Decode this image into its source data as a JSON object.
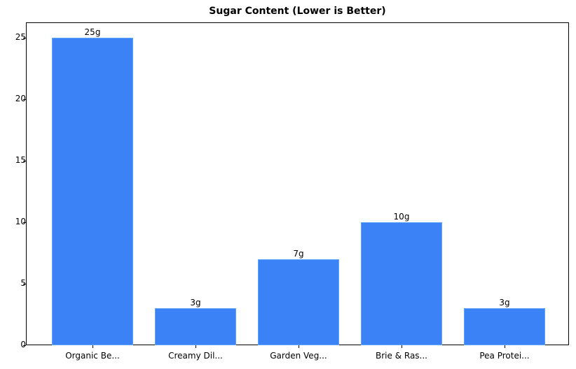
{
  "chart_data": {
    "type": "bar",
    "title": "Sugar Content (Lower is Better)",
    "xlabel": "",
    "ylabel": "",
    "categories": [
      "Organic Be...",
      "Creamy Dil...",
      "Garden Veg...",
      "Brie & Ras...",
      "Pea Protei..."
    ],
    "values": [
      25,
      3,
      7,
      10,
      3
    ],
    "value_labels": [
      "25g",
      "3g",
      "7g",
      "10g",
      "3g"
    ],
    "ylim": [
      0,
      26.25
    ],
    "yticks": [
      0,
      5,
      10,
      15,
      20,
      25
    ],
    "grid": false,
    "legend": null,
    "bar_color": "#3b82f6"
  }
}
